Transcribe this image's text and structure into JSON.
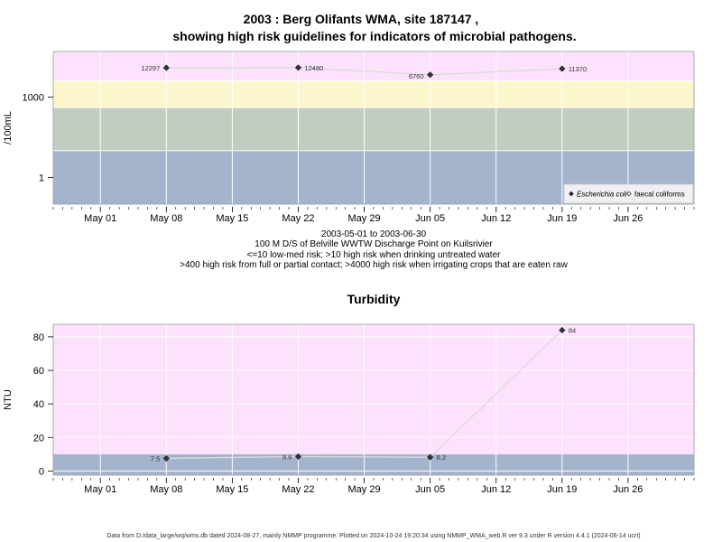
{
  "titles": {
    "main_line1": "2003 : Berg Olifants WMA, site 187147 ,",
    "main_line2": "showing high risk guidelines for indicators of microbial pathogens.",
    "turbidity": "Turbidity"
  },
  "subtitle_lines": [
    "2003-05-01 to 2003-06-30",
    "100 M D/S of Belville WWTW Discharge Point on Kuilsrivier",
    "<=10 low-med risk; >10 high risk when drinking untreated water",
    ">400 high risk from full or partial contact; >4000 high risk when irrigating crops that are eaten raw"
  ],
  "footer": "Data from D:/data_large/wq/wms.db dated 2024-08-27, mainly NMMP programme. Plotted on 2024-10-24 19:20:34 using NMMP_WMA_web.R ver 9.3 under R version 4.4.1 (2024-06-14 ucrt)",
  "colors": {
    "band_low": "#a3b4cc",
    "band_mid": "#c2ccc1",
    "band_high": "#fbf6cc",
    "band_top": "#fce2fc",
    "grid": "#ffffff",
    "line": "#dcdcdc",
    "point": "#333333"
  },
  "chart_data": [
    {
      "type": "scatter",
      "title": "",
      "xlabel": "",
      "ylabel": "/100mL",
      "y_scale": "log",
      "xlim": [
        "2003-04-26",
        "2003-07-03"
      ],
      "ylim": [
        0.1,
        50000
      ],
      "x_ticks": [
        "May 01",
        "May 08",
        "May 15",
        "May 22",
        "May 29",
        "Jun 05",
        "Jun 12",
        "Jun 19",
        "Jun 26"
      ],
      "x_tick_dates": [
        "2003-05-01",
        "2003-05-08",
        "2003-05-15",
        "2003-05-22",
        "2003-05-29",
        "2003-06-05",
        "2003-06-12",
        "2003-06-19",
        "2003-06-26"
      ],
      "y_ticks": [
        1,
        1000
      ],
      "y_tick_labels": [
        "1",
        "1000"
      ],
      "bands": [
        {
          "from": 0.1,
          "to": 10,
          "color": "#a3b4cc"
        },
        {
          "from": 10,
          "to": 400,
          "color": "#c2ccc1"
        },
        {
          "from": 400,
          "to": 4000,
          "color": "#fbf6cc"
        },
        {
          "from": 4000,
          "to": 50000,
          "color": "#fce2fc"
        }
      ],
      "grid": true,
      "legend_position": "bottom-right",
      "series": [
        {
          "name": "Escherichia coli",
          "marker": "filled-diamond",
          "x": [
            "2003-05-08",
            "2003-05-22",
            "2003-06-05",
            "2003-06-19"
          ],
          "y": [
            12297,
            12480,
            6760,
            11370
          ],
          "labels": [
            "12297",
            "12480",
            "6760",
            "11370"
          ]
        },
        {
          "name": "faecal coliforms",
          "marker": "open-diamond",
          "x": [],
          "y": []
        }
      ]
    },
    {
      "type": "scatter",
      "title": "Turbidity",
      "xlabel": "",
      "ylabel": "NTU",
      "y_scale": "linear",
      "xlim": [
        "2003-04-26",
        "2003-07-03"
      ],
      "ylim": [
        -2.5,
        87.5
      ],
      "x_ticks": [
        "May 01",
        "May 08",
        "May 15",
        "May 22",
        "May 29",
        "Jun 05",
        "Jun 12",
        "Jun 19",
        "Jun 26"
      ],
      "x_tick_dates": [
        "2003-05-01",
        "2003-05-08",
        "2003-05-15",
        "2003-05-22",
        "2003-05-29",
        "2003-06-05",
        "2003-06-12",
        "2003-06-19",
        "2003-06-26"
      ],
      "y_ticks": [
        0,
        20,
        40,
        60,
        80
      ],
      "y_tick_labels": [
        "0",
        "20",
        "40",
        "60",
        "80"
      ],
      "bands": [
        {
          "from": -2.5,
          "to": 10,
          "color": "#a3b4cc"
        },
        {
          "from": 10,
          "to": 87.5,
          "color": "#fce2fc"
        }
      ],
      "grid": true,
      "series": [
        {
          "marker": "filled-diamond",
          "x": [
            "2003-05-08",
            "2003-05-22",
            "2003-06-05",
            "2003-06-19"
          ],
          "y": [
            7.5,
            8.6,
            8.2,
            84
          ],
          "labels": [
            "7.5",
            "8.6",
            "8.2",
            "84"
          ]
        }
      ]
    }
  ]
}
